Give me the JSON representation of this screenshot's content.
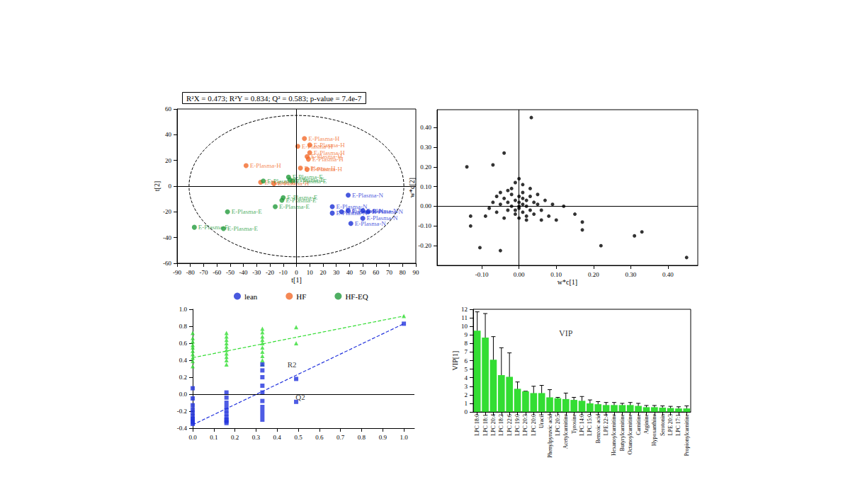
{
  "chart_data": [
    {
      "type": "scatter",
      "title": "R²X = 0.473; R²Y = 0.834; Q² = 0.583; p-value = 7.4e-7",
      "x_label": "t[1]",
      "y_label": "t[2]",
      "xlim": [
        -90,
        90
      ],
      "xticks": [
        -90,
        -80,
        -70,
        -60,
        -50,
        -40,
        -30,
        -20,
        -10,
        0,
        10,
        20,
        30,
        40,
        50,
        60,
        70,
        80,
        90
      ],
      "ylim": [
        -60,
        60
      ],
      "yticks": [
        -60,
        -40,
        -20,
        0,
        20,
        40,
        60
      ],
      "grid": false,
      "legend": "bottom",
      "marker": "circle",
      "ellipse": {
        "x_radius": 81,
        "y_radius": 55
      },
      "series": [
        {
          "name": "lean",
          "color": "#1a2fd6",
          "point_label": "E-Plasma-N",
          "x": [
            39,
            27,
            39,
            50,
            54,
            27,
            50,
            41,
            34
          ],
          "values": [
            -7,
            -16,
            -19,
            -19,
            -20,
            -21,
            -25,
            -29,
            -20
          ]
        },
        {
          "name": "HF",
          "color": "#f26a2a",
          "point_label": "E-Plasma-H",
          "x": [
            6,
            1,
            10,
            10,
            8,
            9,
            -38,
            3,
            8,
            -27,
            -17
          ],
          "values": [
            37,
            31,
            32,
            26,
            23,
            21,
            16,
            14,
            13,
            3,
            2
          ]
        },
        {
          "name": "HF-EQ",
          "color": "#239b3c",
          "point_label": "E-Plasma-E",
          "x": [
            -6,
            -5,
            -3,
            -25,
            -10,
            -11,
            -16,
            -52,
            -77,
            -55
          ],
          "values": [
            7,
            5,
            4,
            4,
            -9,
            -11,
            -16,
            -20,
            -32,
            -33
          ]
        }
      ]
    },
    {
      "type": "scatter",
      "x_label": "w*c[1]",
      "y_label": "w*c[2]",
      "xlim": [
        -0.22,
        0.48
      ],
      "xticks": [
        {
          "value": -0.1,
          "label": "-0.10"
        },
        {
          "value": 0,
          "label": "0.00"
        },
        {
          "value": 0.1,
          "label": "0.10"
        },
        {
          "value": 0.2,
          "label": "0.20"
        },
        {
          "value": 0.3,
          "label": "0.30"
        },
        {
          "value": 0.4,
          "label": "0.40"
        }
      ],
      "ylim": [
        -0.3,
        0.49
      ],
      "yticks": [
        {
          "value": -0.2,
          "label": "-0.20"
        },
        {
          "value": -0.1,
          "label": "-0.10"
        },
        {
          "value": 0,
          "label": "0.00"
        },
        {
          "value": 0.1,
          "label": "0.10"
        },
        {
          "value": 0.2,
          "label": "0.20"
        },
        {
          "value": 0.3,
          "label": "0.30"
        },
        {
          "value": 0.4,
          "label": "0.40"
        }
      ],
      "grid": false,
      "marker": "circle",
      "color": "#000000",
      "x": [
        -0.02,
        0.01,
        0.03,
        -0.04,
        0.0,
        0.02,
        -0.01,
        0.04,
        -0.03,
        0.01,
        0.0,
        -0.02,
        0.02,
        0.05,
        -0.05,
        0.0,
        0.03,
        -0.03,
        0.01,
        -0.01,
        0.04,
        -0.06,
        0.06,
        -0.07,
        0.07,
        0.0,
        -0.04,
        0.02,
        -0.02,
        0.01,
        -0.01,
        0.0,
        0.03,
        -0.05,
        0.05,
        -0.08,
        -0.09,
        -0.06,
        0.08,
        0.09,
        0.0,
        0.01,
        -0.01,
        0.02,
        -0.03,
        0.033,
        -0.14,
        -0.04,
        -0.07,
        -0.13,
        -0.13,
        -0.105,
        -0.05,
        0.45,
        0.33,
        0.31,
        0.22,
        0.17,
        0.17,
        0.12,
        0.15,
        0.1,
        0.06
      ],
      "values": [
        0.06,
        0.07,
        0.05,
        0.04,
        0.05,
        0.03,
        0.03,
        0.02,
        0.02,
        0.01,
        0.02,
        0.0,
        0.0,
        0.01,
        0.01,
        -0.01,
        -0.02,
        -0.02,
        -0.03,
        -0.04,
        -0.04,
        -0.03,
        -0.02,
        0.02,
        0.03,
        -0.06,
        -0.06,
        -0.07,
        0.09,
        0.11,
        0.12,
        0.14,
        0.09,
        0.07,
        0.06,
        -0.01,
        -0.05,
        0.05,
        -0.05,
        0.01,
        0.0,
        0.04,
        -0.02,
        -0.05,
        0.08,
        0.45,
        0.2,
        0.27,
        0.21,
        -0.1,
        -0.05,
        -0.21,
        -0.225,
        -0.26,
        -0.13,
        -0.15,
        -0.2,
        -0.12,
        -0.08,
        0.0,
        -0.04,
        -0.07,
        -0.07
      ]
    },
    {
      "type": "scatter",
      "xlim": [
        0,
        1.05
      ],
      "xticks": [
        {
          "value": 0,
          "label": "0.0"
        },
        {
          "value": 0.1,
          "label": "0.1"
        },
        {
          "value": 0.2,
          "label": "0.2"
        },
        {
          "value": 0.3,
          "label": "0.3"
        },
        {
          "value": 0.4,
          "label": "0.4"
        },
        {
          "value": 0.5,
          "label": "0.5"
        },
        {
          "value": 0.6,
          "label": "0.6"
        },
        {
          "value": 0.7,
          "label": "0.7"
        },
        {
          "value": 0.8,
          "label": "0.8"
        },
        {
          "value": 0.9,
          "label": "0.9"
        },
        {
          "value": 1,
          "label": "1.0"
        }
      ],
      "ylim": [
        -0.4,
        1.0
      ],
      "yticks": [
        {
          "value": -0.4,
          "label": "-0.4"
        },
        {
          "value": -0.2,
          "label": "-0.2"
        },
        {
          "value": 0,
          "label": "0.0"
        },
        {
          "value": 0.2,
          "label": "0.2"
        },
        {
          "value": 0.4,
          "label": "0.4"
        },
        {
          "value": 0.6,
          "label": "0.6"
        },
        {
          "value": 0.8,
          "label": "0.8"
        },
        {
          "value": 1,
          "label": "1.0"
        }
      ],
      "grid": false,
      "annotations": [
        {
          "text": "R2",
          "x": 0.47,
          "y": 0.35
        },
        {
          "text": "Q2",
          "x": 0.51,
          "y": -0.03
        }
      ],
      "series": [
        {
          "name": "R2",
          "color": "#33dd33",
          "marker": "triangle",
          "x": [
            0,
            0,
            0,
            0,
            0,
            0,
            0,
            0,
            0,
            0,
            0.16,
            0.16,
            0.16,
            0.16,
            0.16,
            0.16,
            0.16,
            0.16,
            0.16,
            0.16,
            0.33,
            0.33,
            0.33,
            0.33,
            0.33,
            0.33,
            0.33,
            0.33,
            0.33,
            0.33,
            0.49,
            0.49,
            1
          ],
          "values": [
            0.72,
            0.66,
            0.62,
            0.58,
            0.55,
            0.51,
            0.47,
            0.43,
            0.39,
            0.33,
            0.72,
            0.68,
            0.64,
            0.6,
            0.56,
            0.52,
            0.48,
            0.44,
            0.4,
            0.35,
            0.77,
            0.73,
            0.68,
            0.64,
            0.6,
            0.55,
            0.5,
            0.45,
            0.4,
            0.35,
            0.79,
            0.6,
            0.92
          ],
          "fit": [
            [
              0,
              0.43
            ],
            [
              1,
              0.92
            ]
          ]
        },
        {
          "name": "Q2",
          "color": "#2233dd",
          "marker": "square",
          "x": [
            0,
            0,
            0,
            0,
            0,
            0,
            0,
            0,
            0,
            0,
            0.16,
            0.16,
            0.16,
            0.16,
            0.16,
            0.16,
            0.16,
            0.16,
            0.16,
            0.16,
            0.33,
            0.33,
            0.33,
            0.33,
            0.33,
            0.33,
            0.33,
            0.33,
            0.33,
            0.33,
            0.49,
            0.49,
            1
          ],
          "values": [
            0.07,
            -0.05,
            -0.13,
            -0.18,
            -0.22,
            -0.26,
            -0.29,
            -0.31,
            -0.33,
            -0.35,
            0.02,
            -0.04,
            -0.1,
            -0.15,
            -0.19,
            -0.23,
            -0.27,
            -0.3,
            -0.32,
            -0.34,
            0.35,
            0.28,
            0.2,
            0.1,
            0.02,
            -0.08,
            -0.15,
            -0.2,
            -0.25,
            -0.3,
            0.18,
            -0.09,
            0.83
          ],
          "fit": [
            [
              0,
              -0.36
            ],
            [
              1,
              0.83
            ]
          ]
        }
      ]
    },
    {
      "type": "bar",
      "y_label": "VIP[1]",
      "categories": [
        "LPC 18:0",
        "LPC 18:1",
        "LPC 20:4",
        "LPC 18:2",
        "LPC 22:6",
        "LPC 19:0",
        "LPC 20:3",
        "LPC 20:0",
        "Uracil",
        "Phenylpyruvic acid",
        "LPC 20:5",
        "Acetylcarnitine",
        "Tyrosine",
        "LPC 14:0",
        "LPC 15:0",
        "Benzoic acid",
        "LPE 22:4",
        "Hexanoylcarnitine",
        "Butyrylcarnitine",
        "Octanoylcarnitine",
        "Carnitine",
        "Arginine",
        "Hypoxanthine",
        "Serotonin",
        "LPE 20:3",
        "LPC 17:1",
        "Propionylcarnitine"
      ],
      "values": [
        9.5,
        8.7,
        6.1,
        4.3,
        4.1,
        2.7,
        2.4,
        2.2,
        2.2,
        1.7,
        1.6,
        1.5,
        1.4,
        1.3,
        1.0,
        0.9,
        0.8,
        0.8,
        0.8,
        0.8,
        0.7,
        0.55,
        0.55,
        0.5,
        0.45,
        0.4,
        0.4
      ],
      "errors": [
        2.2,
        2.8,
        2.7,
        3.2,
        2.8,
        0.8,
        0.0,
        0.8,
        0.9,
        0.9,
        0.1,
        0.7,
        0.3,
        0.5,
        0.4,
        0.3,
        0.3,
        0.3,
        0.2,
        0.3,
        0.3,
        0.2,
        0.2,
        0.2,
        0.2,
        0.2,
        0.3
      ],
      "color": "#33dd33",
      "ylim": [
        0,
        12
      ],
      "yticks": [
        0,
        1,
        2,
        3,
        4,
        5,
        6,
        7,
        8,
        9,
        10,
        11,
        12
      ],
      "grid": false,
      "annotations": [
        {
          "text": "VIP",
          "x": "Acetylcarnitine",
          "y": 9.2
        }
      ]
    }
  ]
}
